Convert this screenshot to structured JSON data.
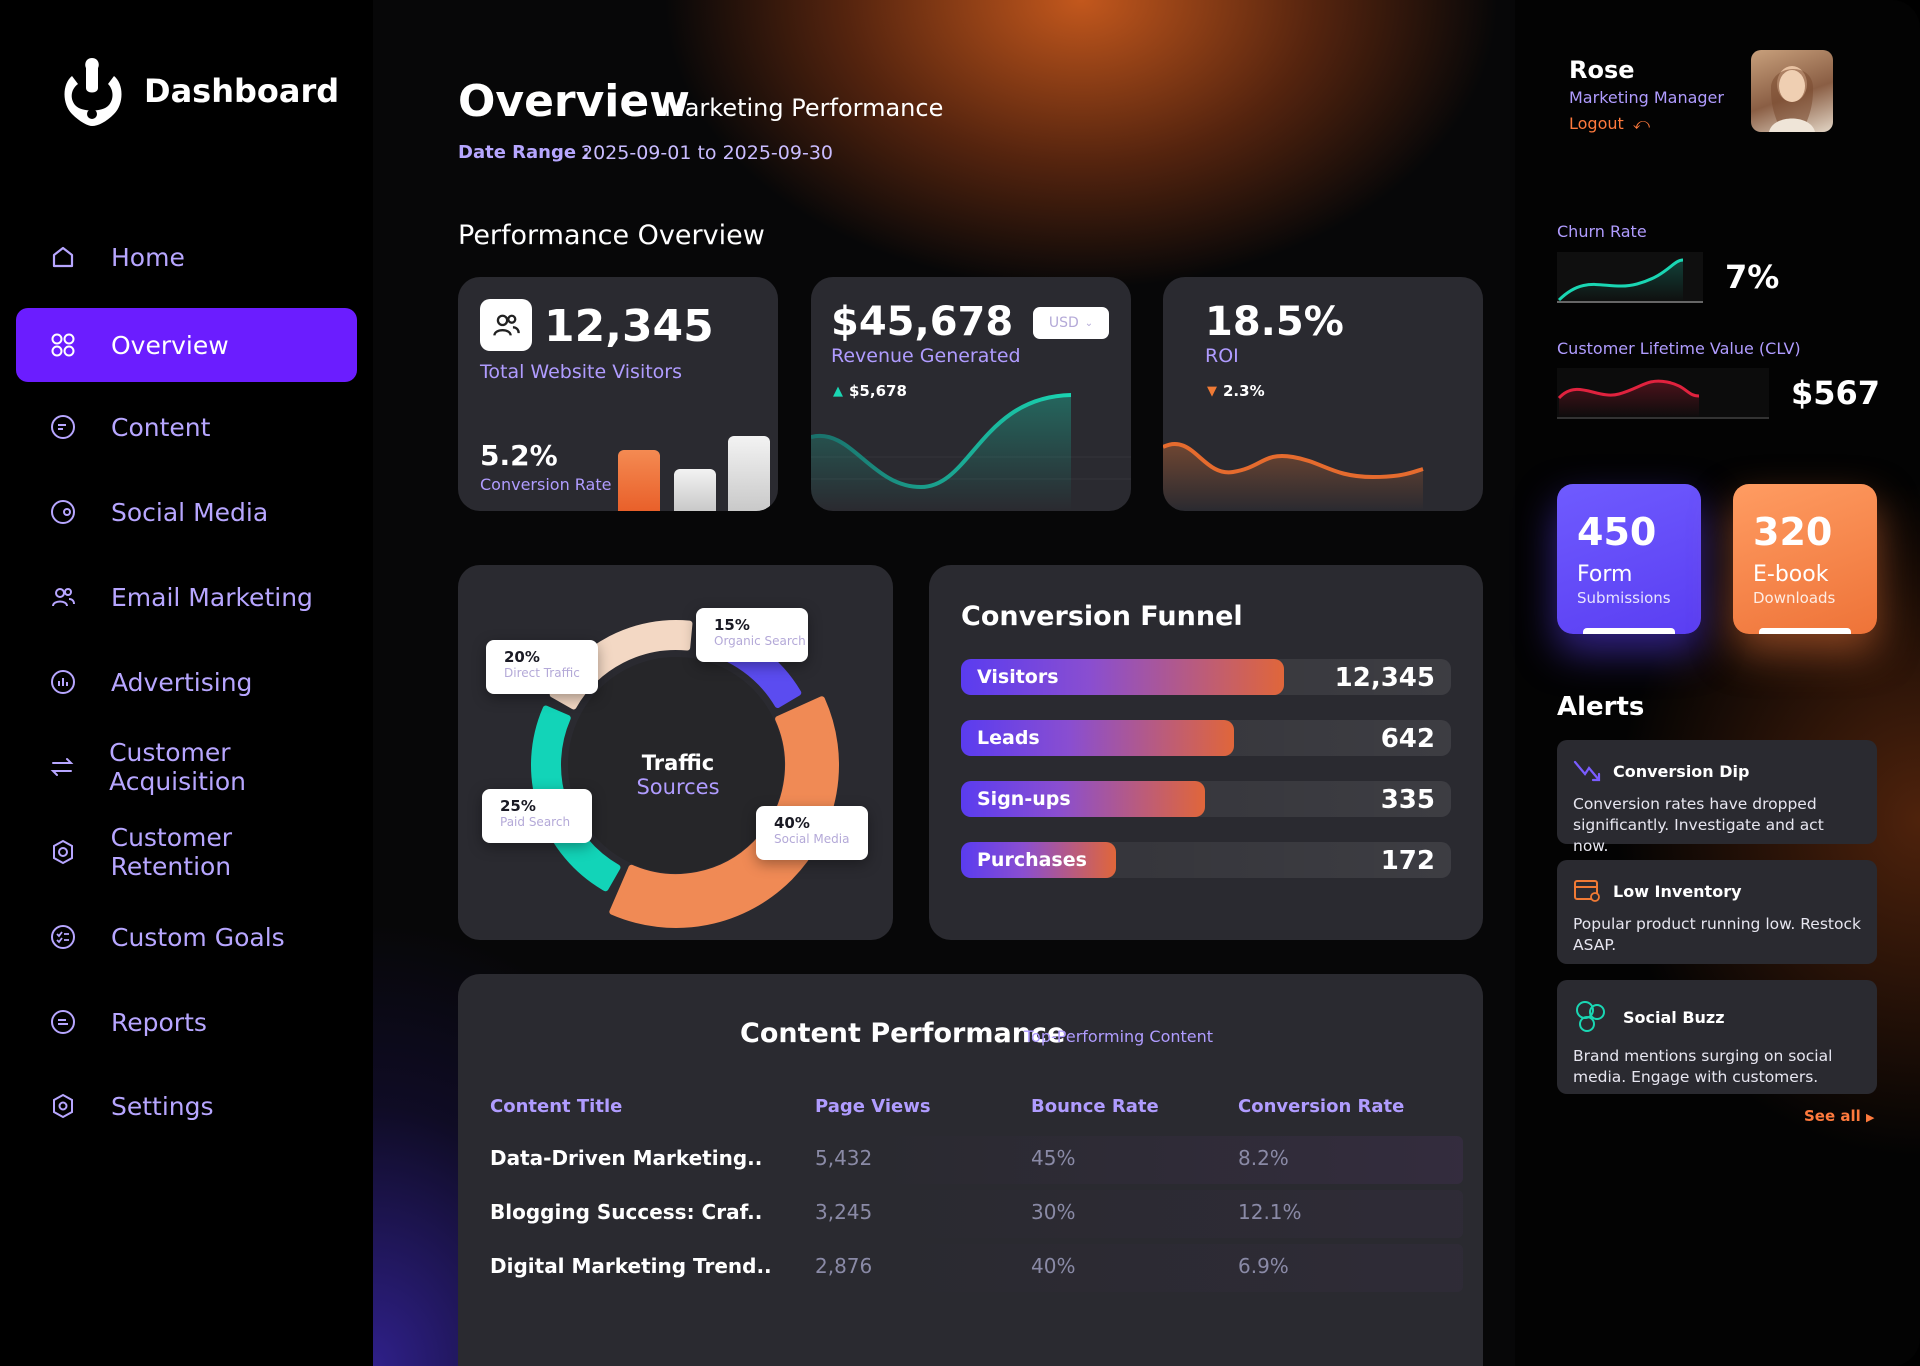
{
  "brand": {
    "name": "Dashboard"
  },
  "nav": {
    "items": [
      {
        "label": "Home",
        "icon": "home-icon"
      },
      {
        "label": "Overview",
        "icon": "grid-icon",
        "active": true
      },
      {
        "label": "Content",
        "icon": "content-icon"
      },
      {
        "label": "Social Media",
        "icon": "social-icon"
      },
      {
        "label": "Email Marketing",
        "icon": "users-icon"
      },
      {
        "label": "Advertising",
        "icon": "chart-circle-icon"
      },
      {
        "label": "Customer Acquisition",
        "icon": "swap-icon"
      },
      {
        "label": "Customer Retention",
        "icon": "target-icon"
      },
      {
        "label": "Custom Goals",
        "icon": "checklist-icon"
      },
      {
        "label": "Reports",
        "icon": "report-icon"
      },
      {
        "label": "Settings",
        "icon": "settings-icon"
      }
    ]
  },
  "header": {
    "title": "Overview",
    "subtitle": "Marketing Performance",
    "date_label": "Date Range :",
    "date_value": "2025-09-01 to 2025-09-30"
  },
  "performance": {
    "section_title": "Performance Overview",
    "visitors": {
      "value": "12,345",
      "label": "Total Website Visitors",
      "conv_value": "5.2%",
      "conv_label": "Conversion Rate",
      "bars": [
        0.55,
        0.38,
        0.68
      ]
    },
    "revenue": {
      "value": "$45,678",
      "label": "Revenue Generated",
      "currency": "USD",
      "delta": "$5,678"
    },
    "roi": {
      "value": "18.5%",
      "label": "ROI",
      "delta": "2.3%"
    }
  },
  "traffic": {
    "title_line1": "Traffic",
    "title_line2": "Sources",
    "slices": [
      {
        "pct": "40%",
        "label": "Social Media",
        "value": 40,
        "color": "#f08a55"
      },
      {
        "pct": "25%",
        "label": "Paid Search",
        "value": 25,
        "color": "#12d4b8"
      },
      {
        "pct": "20%",
        "label": "Direct Traffic",
        "value": 20,
        "color": "#f3d8c4"
      },
      {
        "pct": "15%",
        "label": "Organic Search",
        "value": 15,
        "color": "#5b4cf0"
      }
    ]
  },
  "funnel": {
    "title": "Conversion Funnel",
    "rows": [
      {
        "label": "Visitors",
        "value": "12,345",
        "fill": 0.77
      },
      {
        "label": "Leads",
        "value": "642",
        "fill": 0.65
      },
      {
        "label": "Sign-ups",
        "value": "335",
        "fill": 0.58
      },
      {
        "label": "Purchases",
        "value": "172",
        "fill": 0.37
      }
    ]
  },
  "content_perf": {
    "title": "Content Performance",
    "subtitle": "Top-Performing Content",
    "columns": [
      "Content Title",
      "Page Views",
      "Bounce Rate",
      "Conversion Rate"
    ],
    "rows": [
      [
        "Data-Driven Marketing..",
        "5,432",
        "45%",
        "8.2%"
      ],
      [
        "Blogging Success: Craf..",
        "3,245",
        "30%",
        "12.1%"
      ],
      [
        "Digital Marketing Trend..",
        "2,876",
        "40%",
        "6.9%"
      ]
    ]
  },
  "profile": {
    "name": "Rose",
    "role": "Marketing Manager",
    "logout": "Logout"
  },
  "metrics": {
    "churn_label": "Churn Rate",
    "churn_value": "7%",
    "clv_label": "Customer Lifetime Value (CLV)",
    "clv_value": "$567"
  },
  "tiles": {
    "form": {
      "value": "450",
      "line1": "Form",
      "line2": "Submissions"
    },
    "ebook": {
      "value": "320",
      "line1": "E-book",
      "line2": "Downloads"
    }
  },
  "alerts": {
    "title": "Alerts",
    "items": [
      {
        "title": "Conversion Dip",
        "body": "Conversion rates have dropped significantly. Investigate and act now.",
        "icon": "trend-down-icon"
      },
      {
        "title": "Low Inventory",
        "body": "Popular product running low. Restock ASAP.",
        "icon": "inventory-icon"
      },
      {
        "title": "Social Buzz",
        "body": "Brand mentions surging on social media. Engage with customers.",
        "icon": "social-buzz-icon"
      }
    ],
    "see_all": "See all"
  },
  "colors": {
    "accent_purple": "#6b1dff",
    "accent_orange": "#f08a55",
    "accent_teal": "#12d4b8",
    "card_bg": "#2a2a30"
  }
}
